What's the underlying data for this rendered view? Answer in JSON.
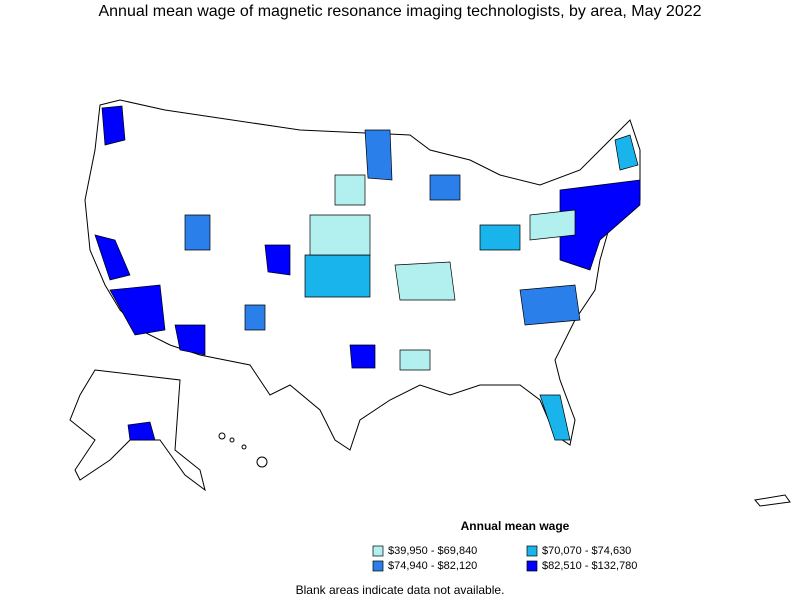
{
  "title": "Annual mean wage of magnetic resonance imaging technologists, by area, May 2022",
  "legend": {
    "title": "Annual mean wage",
    "items": [
      {
        "label": "$39,950 - $69,840",
        "color": "#b2f0f0"
      },
      {
        "label": "$70,070 - $74,630",
        "color": "#19b4ec"
      },
      {
        "label": "$74,940 - $82,120",
        "color": "#2a7fea"
      },
      {
        "label": "$82,510 - $132,780",
        "color": "#0000ff"
      }
    ]
  },
  "note": "Blank areas indicate data not available."
}
